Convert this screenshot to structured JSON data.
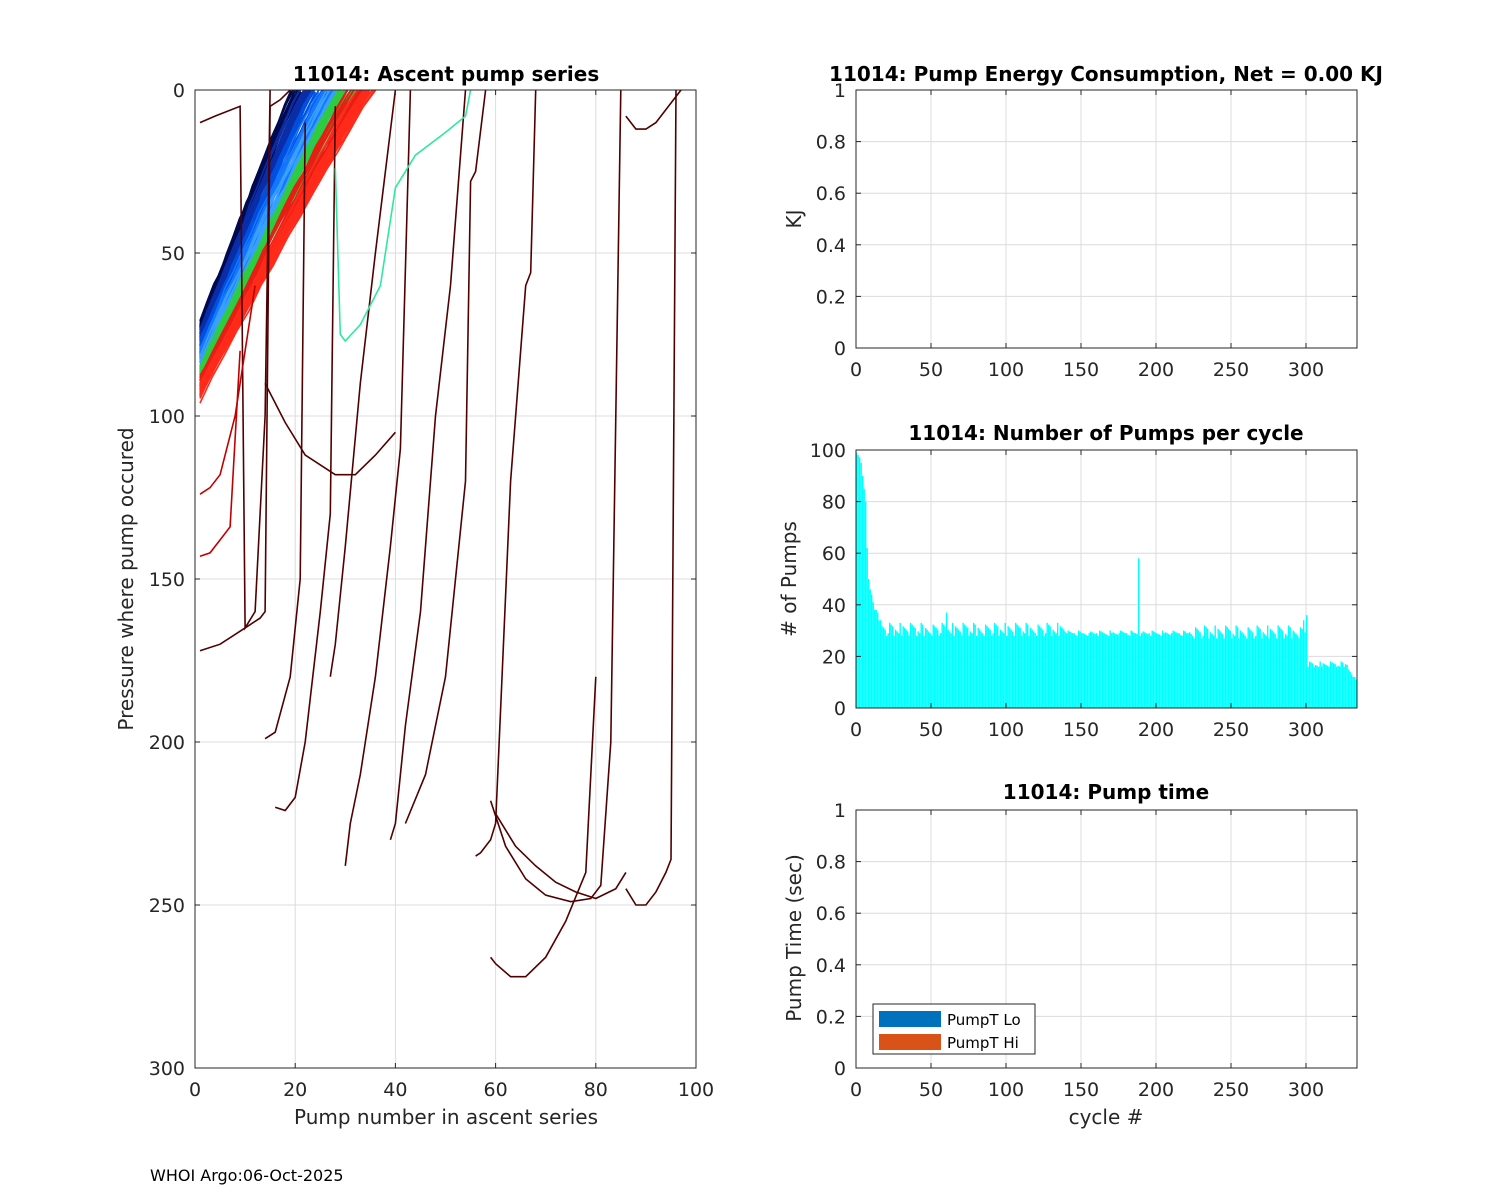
{
  "footer": "WHOI Argo:06-Oct-2025",
  "chart_data": [
    {
      "id": "ascent",
      "type": "line",
      "title": "11014: Ascent pump series",
      "xlabel": "Pump number in ascent series",
      "ylabel": "Pressure where pump occured",
      "xlim": [
        0,
        100
      ],
      "ylim": [
        0,
        300
      ],
      "y_reversed": true,
      "xticks": [
        0,
        20,
        40,
        60,
        80,
        100
      ],
      "yticks": [
        0,
        50,
        100,
        150,
        200,
        250,
        300
      ],
      "grid": true,
      "band": {
        "count": 160,
        "colors": [
          "#000a50",
          "#0a2ea8",
          "#0050e0",
          "#1478ff",
          "#3aa0ff",
          "#2ecc40",
          "#e61e14",
          "#ff2a1a"
        ],
        "start_y": [
          72,
          94
        ],
        "end_x": [
          20,
          35
        ]
      },
      "series": [
        {
          "color": "#500000",
          "x": [
            1,
            4,
            9,
            10,
            12,
            14,
            15
          ],
          "y": [
            10,
            8,
            5,
            165,
            160,
            100,
            0
          ]
        },
        {
          "color": "#500000",
          "x": [
            1,
            5,
            9,
            10,
            13,
            14,
            15,
            17,
            19
          ],
          "y": [
            172,
            170,
            166,
            165,
            162,
            160,
            5,
            3,
            0
          ]
        },
        {
          "color": "#500000",
          "x": [
            14,
            16,
            19,
            21,
            22
          ],
          "y": [
            199,
            197,
            180,
            150,
            10
          ]
        },
        {
          "color": "#500000",
          "x": [
            16,
            18,
            20,
            22,
            25,
            27,
            28
          ],
          "y": [
            220,
            221,
            217,
            200,
            160,
            130,
            5
          ]
        },
        {
          "color": "#500000",
          "x": [
            14,
            18,
            22,
            28,
            32,
            36,
            40
          ],
          "y": [
            90,
            102,
            112,
            118,
            118,
            112,
            105
          ]
        },
        {
          "color": "#500000",
          "x": [
            27,
            28,
            30,
            33,
            36,
            38,
            40
          ],
          "y": [
            180,
            170,
            140,
            90,
            50,
            25,
            0
          ]
        },
        {
          "color": "#500000",
          "x": [
            30,
            31,
            33,
            36,
            39,
            41,
            43
          ],
          "y": [
            238,
            225,
            210,
            180,
            140,
            110,
            0
          ]
        },
        {
          "color": "#500000",
          "x": [
            39,
            40,
            42,
            45,
            48,
            51,
            54
          ],
          "y": [
            230,
            225,
            195,
            160,
            100,
            60,
            0
          ]
        },
        {
          "color": "#500000",
          "x": [
            42,
            46,
            50,
            54,
            55,
            56,
            58
          ],
          "y": [
            225,
            210,
            180,
            120,
            28,
            25,
            0
          ]
        },
        {
          "color": "#500000",
          "x": [
            56,
            57,
            58,
            59,
            60,
            63,
            66,
            67,
            68
          ],
          "y": [
            235,
            234,
            232,
            230,
            225,
            120,
            60,
            56,
            0
          ]
        },
        {
          "color": "#500000",
          "x": [
            59,
            60,
            63,
            66,
            70,
            74,
            78,
            80
          ],
          "y": [
            266,
            268,
            272,
            272,
            266,
            255,
            240,
            180
          ]
        },
        {
          "color": "#500000",
          "x": [
            59,
            62,
            66,
            70,
            75,
            79,
            81,
            83,
            85
          ],
          "y": [
            218,
            232,
            242,
            247,
            249,
            248,
            244,
            200,
            0
          ]
        },
        {
          "color": "#500000",
          "x": [
            60,
            64,
            68,
            72,
            76,
            80,
            84,
            86
          ],
          "y": [
            222,
            232,
            238,
            243,
            246,
            248,
            245,
            240
          ]
        },
        {
          "color": "#500000",
          "x": [
            86,
            88,
            90,
            92,
            94,
            95,
            96
          ],
          "y": [
            245,
            250,
            250,
            246,
            240,
            236,
            0
          ]
        },
        {
          "color": "#500000",
          "x": [
            86,
            87,
            88,
            90,
            92,
            94,
            96,
            97
          ],
          "y": [
            8,
            10,
            12,
            12,
            10,
            6,
            2,
            0
          ]
        },
        {
          "color": "#c00000",
          "x": [
            1,
            3,
            5,
            8,
            10,
            12
          ],
          "y": [
            124,
            122,
            118,
            100,
            80,
            60
          ]
        },
        {
          "color": "#c00000",
          "x": [
            1,
            3,
            5,
            7,
            9
          ],
          "y": [
            143,
            142,
            138,
            134,
            80
          ]
        },
        {
          "color": "#2ee8a0",
          "x": [
            28,
            29,
            30,
            33,
            37,
            40,
            44,
            50,
            54,
            55
          ],
          "y": [
            24,
            75,
            77,
            72,
            60,
            30,
            20,
            13,
            8,
            0
          ]
        }
      ]
    },
    {
      "id": "energy",
      "type": "bar",
      "title": "11014: Pump Energy Consumption,  Net =   0.00 KJ",
      "xlabel": "",
      "ylabel": "KJ",
      "xlim": [
        0,
        334
      ],
      "ylim": [
        0,
        1
      ],
      "xticks": [
        0,
        50,
        100,
        150,
        200,
        250,
        300
      ],
      "yticks": [
        0,
        0.2,
        0.4,
        0.6,
        0.8,
        1
      ],
      "grid": true,
      "values": []
    },
    {
      "id": "pumps",
      "type": "bar",
      "title": "11014: Number of Pumps per cycle",
      "xlabel": "",
      "ylabel": "# of Pumps",
      "xlim": [
        0,
        334
      ],
      "ylim": [
        0,
        100
      ],
      "xticks": [
        0,
        50,
        100,
        150,
        200,
        250,
        300
      ],
      "yticks": [
        0,
        20,
        40,
        60,
        80,
        100
      ],
      "grid": true,
      "bar_color": "#00ffff",
      "head": [
        99,
        98,
        97,
        95,
        90,
        85,
        80,
        62,
        50,
        46,
        44,
        41,
        38,
        38,
        37,
        34,
        34
      ],
      "segments": [
        {
          "from": 17,
          "to": 140,
          "base": 31,
          "amp": 2,
          "alt": 28
        },
        {
          "from": 140,
          "to": 222,
          "base": 29,
          "amp": 1,
          "alt": 29
        },
        {
          "from": 222,
          "to": 301,
          "base": 30,
          "amp": 2,
          "alt": 27
        },
        {
          "from": 301,
          "to": 328,
          "base": 17,
          "amp": 1,
          "alt": 16
        }
      ],
      "tail": [
        15,
        14,
        13,
        12,
        12,
        11
      ],
      "spikes": [
        {
          "x": 188,
          "y": 58
        },
        {
          "x": 60,
          "y": 37
        },
        {
          "x": 300,
          "y": 36
        },
        {
          "x": 298,
          "y": 34
        }
      ]
    },
    {
      "id": "pumptime",
      "type": "bar",
      "title": "11014: Pump time",
      "xlabel": "cycle #",
      "ylabel": "Pump Time (sec)",
      "xlim": [
        0,
        334
      ],
      "ylim": [
        0,
        1
      ],
      "xticks": [
        0,
        50,
        100,
        150,
        200,
        250,
        300
      ],
      "yticks": [
        0,
        0.2,
        0.4,
        0.6,
        0.8,
        1
      ],
      "grid": true,
      "legend": [
        {
          "label": "PumpT Lo",
          "color": "#0072bd"
        },
        {
          "label": "PumpT Hi",
          "color": "#d95319"
        }
      ],
      "values": []
    }
  ]
}
